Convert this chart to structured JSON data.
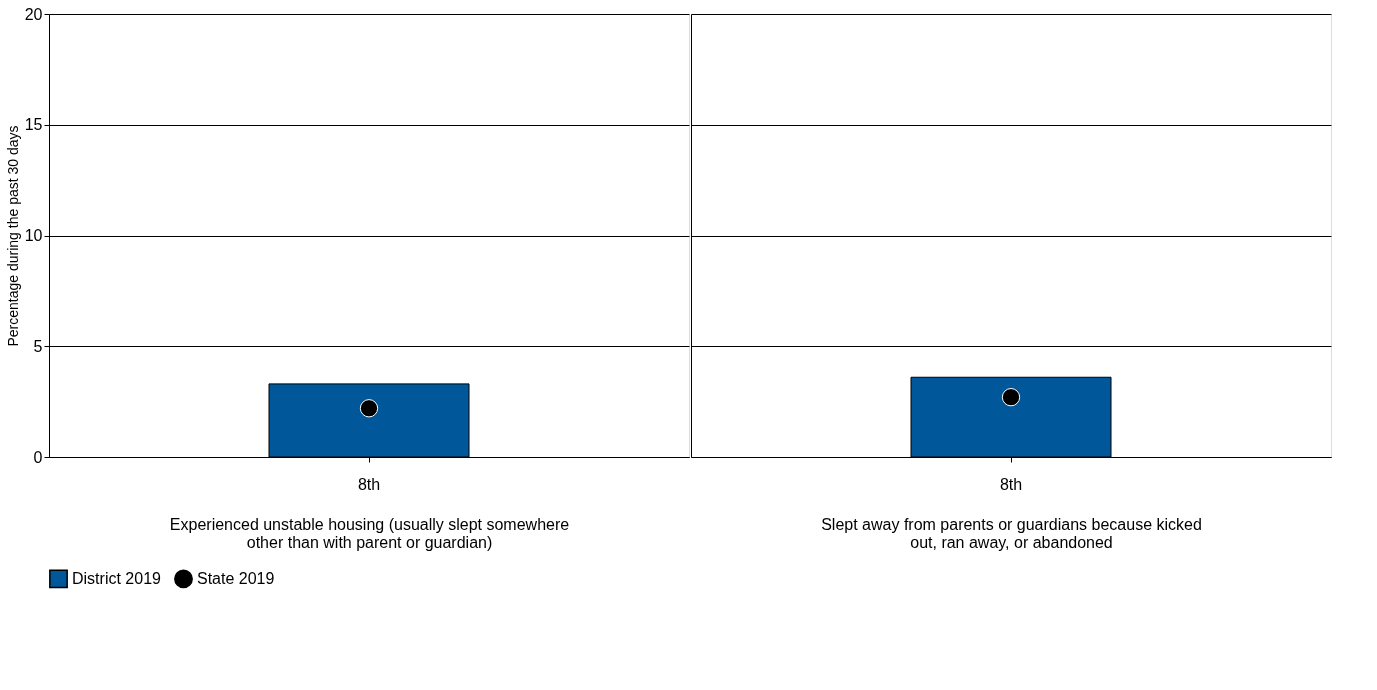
{
  "chart_data": [
    {
      "type": "bar",
      "ylabel": "Percentage during the past 30 days",
      "xlabel": "Experienced unstable housing (usually slept somewhere other than with parent or guardian)",
      "categories": [
        "8th"
      ],
      "ylim": [
        0,
        20
      ],
      "yticks": [
        0,
        5,
        10,
        15,
        20
      ],
      "grid": "y",
      "legend": "bottom",
      "series": [
        {
          "name": "District 2019",
          "color": "#00579a",
          "values": [
            3.3
          ]
        },
        {
          "name": "State 2019",
          "type": "scatter",
          "color": "#000000",
          "marker": "circle",
          "values": [
            2.2
          ]
        }
      ]
    },
    {
      "type": "bar",
      "xlabel": "Slept away from parents or guardians because kicked out, ran away, or abandoned",
      "categories": [
        "8th"
      ],
      "ylim": [
        0,
        20
      ],
      "yticks": [
        0,
        5,
        10,
        15,
        20
      ],
      "grid": "y",
      "tick_labels": "x",
      "legend": "bottom",
      "series": [
        {
          "name": "District 2019",
          "color": "#00579a",
          "values": [
            3.6
          ]
        },
        {
          "name": "State 2019",
          "type": "scatter",
          "color": "#000000",
          "marker": "circle",
          "values": [
            2.7
          ]
        }
      ]
    }
  ]
}
